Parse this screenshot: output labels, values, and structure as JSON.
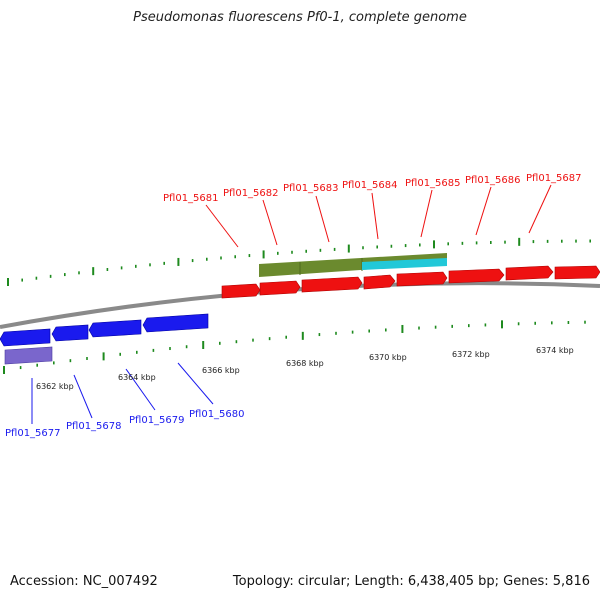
{
  "header": {
    "title": "Pseudomonas fluorescens Pf0-1, complete genome"
  },
  "footer": {
    "accession": "Accession: NC_007492",
    "summary": "Topology: circular; Length: 6,438,405 bp; Genes: 5,816"
  },
  "colors": {
    "forward_gene": "#ee1111",
    "reverse_gene": "#1a1aee",
    "backbone": "#8a8a8a",
    "tick": "#1e8a1e",
    "feature_olive": "#6b8a2e",
    "feature_cyan": "#22c8d8",
    "feature_purple": "#7a66cc"
  },
  "scale_labels": [
    "6362 kbp",
    "6364 kbp",
    "6366 kbp",
    "6368 kbp",
    "6370 kbp",
    "6372 kbp",
    "6374 kbp"
  ],
  "forward_genes": [
    "Pfl01_5681",
    "Pfl01_5682",
    "Pfl01_5683",
    "Pfl01_5684",
    "Pfl01_5685",
    "Pfl01_5686",
    "Pfl01_5687"
  ],
  "reverse_genes": [
    "Pfl01_5677",
    "Pfl01_5678",
    "Pfl01_5679",
    "Pfl01_5680"
  ]
}
